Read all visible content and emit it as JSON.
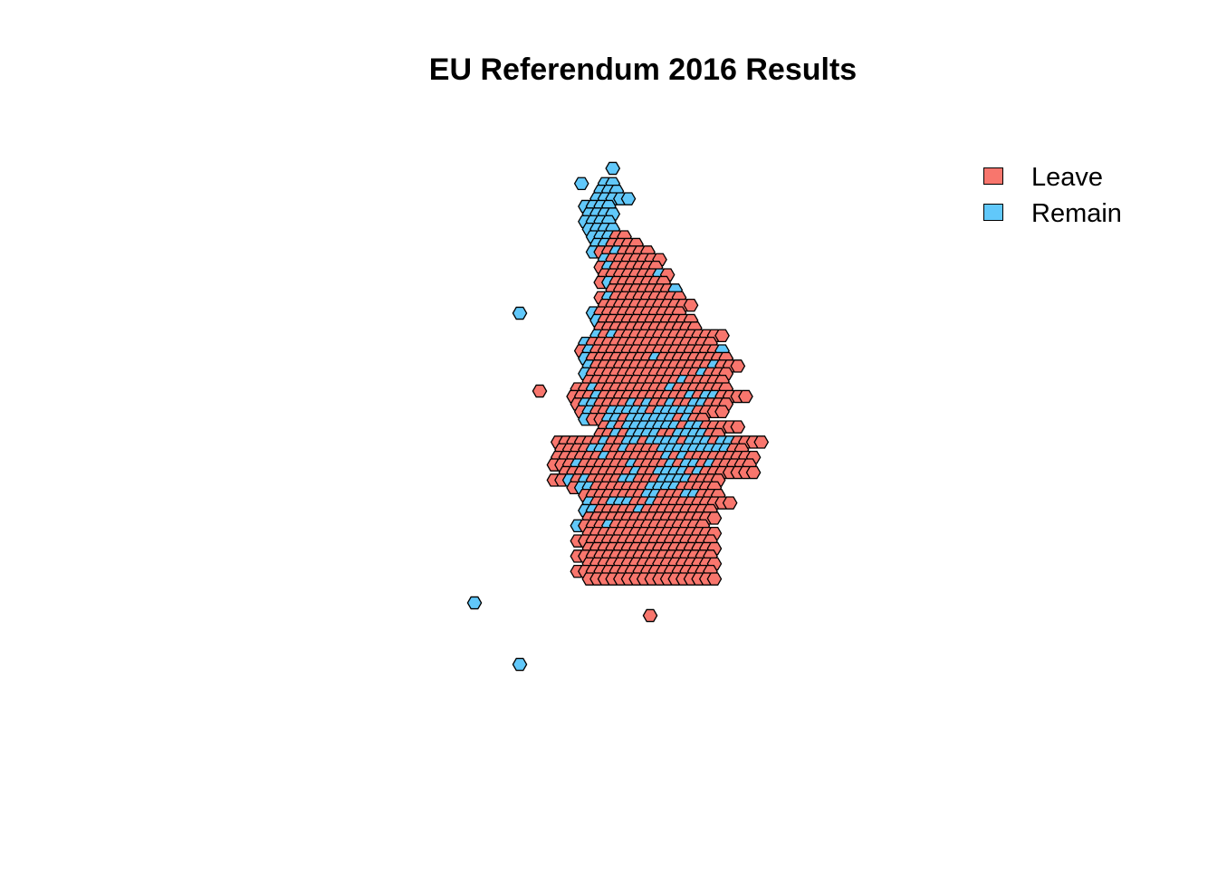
{
  "title": "EU Referendum 2016 Results",
  "colors": {
    "Leave": "#f8766d",
    "Remain": "#61c8fa",
    "outline": "#000000"
  },
  "legend": {
    "items": [
      {
        "label": "Leave",
        "color": "#f8766d"
      },
      {
        "label": "Remain",
        "color": "#61c8fa"
      }
    ]
  },
  "chart_data": {
    "type": "hexagon map",
    "categories": [
      "Leave",
      "Remain"
    ],
    "counts": {
      "Leave": 393,
      "Remain": 86
    }
  }
}
